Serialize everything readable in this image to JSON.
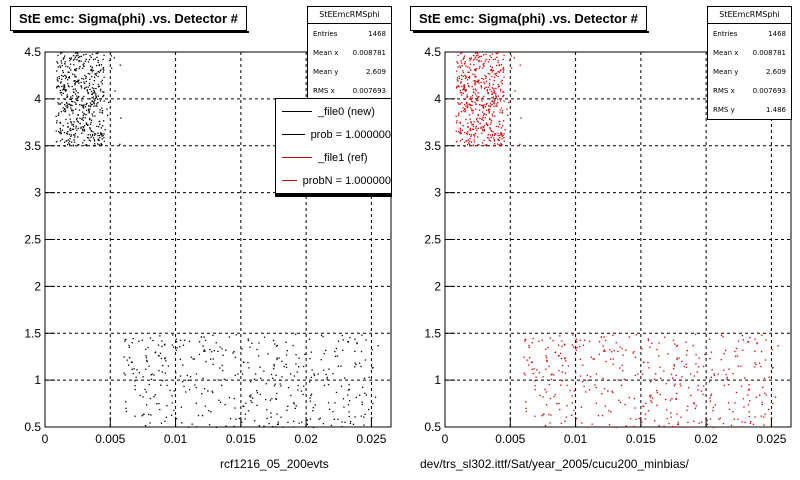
{
  "chart_data": [
    {
      "type": "scatter",
      "title": "StE emc: Sigma(phi) .vs. Detector #",
      "xlabel": "rcf1216_05_200evts",
      "ylabel": "",
      "xlim": [
        0,
        0.0265
      ],
      "ylim": [
        0.5,
        4.5
      ],
      "xticks": [
        "0",
        "0.005",
        "0.01",
        "0.015",
        "0.02",
        "0.025"
      ],
      "yticks": [
        "0.5",
        "1",
        "1.5",
        "2",
        "2.5",
        "3",
        "3.5",
        "4",
        "4.5"
      ],
      "grid": true,
      "marker_color": "#000000",
      "clusters": [
        {
          "x_range": [
            0.0008,
            0.0062
          ],
          "y_range": [
            3.5,
            4.5
          ],
          "density": "high"
        },
        {
          "x_range": [
            0.006,
            0.0255
          ],
          "y_range": [
            0.5,
            1.5
          ],
          "density": "low"
        }
      ],
      "stats": {
        "name": "StEEmcRMSphi",
        "rows": [
          {
            "label": "Entries",
            "value": "1468"
          },
          {
            "label": "Mean x",
            "value": "0.008781"
          },
          {
            "label": "Mean y",
            "value": "2.609"
          },
          {
            "label": "RMS x",
            "value": "0.007693"
          }
        ]
      },
      "legend": {
        "placement": "top-right",
        "entries": [
          {
            "label": "_file0 (new)",
            "color": "#000000"
          },
          {
            "label": "prob = 1.000000",
            "color": "#000000"
          },
          {
            "label": "_file1 (ref)",
            "color": "#cc0000"
          },
          {
            "label": "probN = 1.000000",
            "color": "#cc0000"
          }
        ]
      }
    },
    {
      "type": "scatter",
      "title": "StE emc: Sigma(phi) .vs. Detector #",
      "xlabel": "dev/trs_sl302.ittf/Sat/year_2005/cucu200_minbias/",
      "ylabel": "",
      "xlim": [
        0,
        0.0265
      ],
      "ylim": [
        0.5,
        4.5
      ],
      "xticks": [
        "0",
        "0.005",
        "0.01",
        "0.015",
        "0.02",
        "0.025"
      ],
      "yticks": [
        "0.5",
        "1",
        "1.5",
        "2",
        "2.5",
        "3",
        "3.5",
        "4",
        "4.5"
      ],
      "grid": true,
      "marker_color": "#cc0000",
      "clusters": [
        {
          "x_range": [
            0.0008,
            0.0062
          ],
          "y_range": [
            3.5,
            4.5
          ],
          "density": "high"
        },
        {
          "x_range": [
            0.006,
            0.0255
          ],
          "y_range": [
            0.5,
            1.5
          ],
          "density": "low"
        }
      ],
      "stats": {
        "name": "StEEmcRMSphi",
        "rows": [
          {
            "label": "Entries",
            "value": "1468"
          },
          {
            "label": "Mean x",
            "value": "0.008781"
          },
          {
            "label": "Mean y",
            "value": "2.609"
          },
          {
            "label": "RMS x",
            "value": "0.007693"
          },
          {
            "label": "RMS y",
            "value": "1.486"
          }
        ]
      }
    }
  ]
}
